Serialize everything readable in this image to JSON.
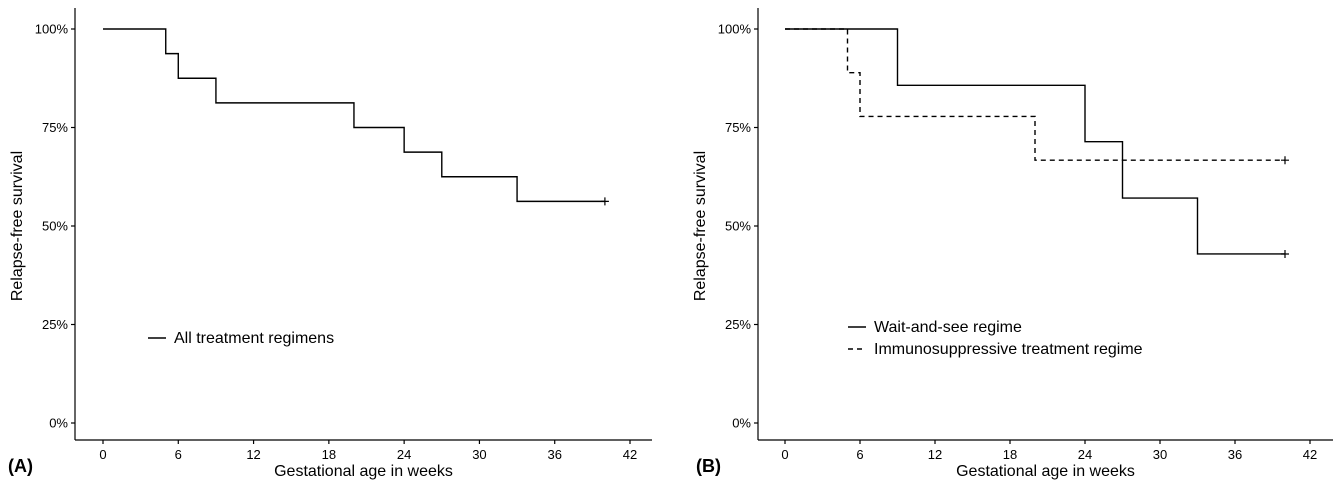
{
  "chart_data": [
    {
      "type": "line",
      "panel_label": "(A)",
      "xlabel": "Gestational age in weeks",
      "ylabel": "Relapse-free survival",
      "xlim": [
        0,
        42
      ],
      "ylim": [
        0,
        1
      ],
      "x_ticks": [
        0,
        6,
        12,
        18,
        24,
        30,
        36,
        42
      ],
      "y_ticks": [
        0,
        0.25,
        0.5,
        0.75,
        1.0
      ],
      "y_tick_labels": [
        "0%",
        "25%",
        "50%",
        "75%",
        "100%"
      ],
      "grid": false,
      "legend_position": "bottom-left",
      "series": [
        {
          "name": "All treatment regimens",
          "style": "solid",
          "color": "#000000",
          "steps": [
            [
              0,
              1.0
            ],
            [
              5,
              0.9375
            ],
            [
              6,
              0.875
            ],
            [
              9,
              0.8125
            ],
            [
              20,
              0.75
            ],
            [
              24,
              0.6875
            ],
            [
              27,
              0.625
            ],
            [
              33,
              0.5625
            ],
            [
              40,
              0.5625
            ]
          ],
          "censored": [
            [
              40,
              0.5625
            ]
          ]
        }
      ]
    },
    {
      "type": "line",
      "panel_label": "(B)",
      "xlabel": "Gestational age in weeks",
      "ylabel": "Relapse-free survival",
      "xlim": [
        0,
        42
      ],
      "ylim": [
        0,
        1
      ],
      "x_ticks": [
        0,
        6,
        12,
        18,
        24,
        30,
        36,
        42
      ],
      "y_ticks": [
        0,
        0.25,
        0.5,
        0.75,
        1.0
      ],
      "y_tick_labels": [
        "0%",
        "25%",
        "50%",
        "75%",
        "100%"
      ],
      "grid": false,
      "legend_position": "bottom-left",
      "series": [
        {
          "name": "Wait-and-see regime",
          "style": "solid",
          "color": "#000000",
          "steps": [
            [
              0,
              1.0
            ],
            [
              9,
              0.857
            ],
            [
              24,
              0.714
            ],
            [
              27,
              0.571
            ],
            [
              33,
              0.429
            ],
            [
              40,
              0.429
            ]
          ],
          "censored": [
            [
              40,
              0.429
            ]
          ]
        },
        {
          "name": "Immunosuppressive treatment regime",
          "style": "dashed",
          "color": "#000000",
          "steps": [
            [
              0,
              1.0
            ],
            [
              5,
              0.889
            ],
            [
              6,
              0.778
            ],
            [
              20,
              0.667
            ],
            [
              40,
              0.667
            ]
          ],
          "censored": [
            [
              40,
              0.667
            ]
          ]
        }
      ]
    }
  ]
}
